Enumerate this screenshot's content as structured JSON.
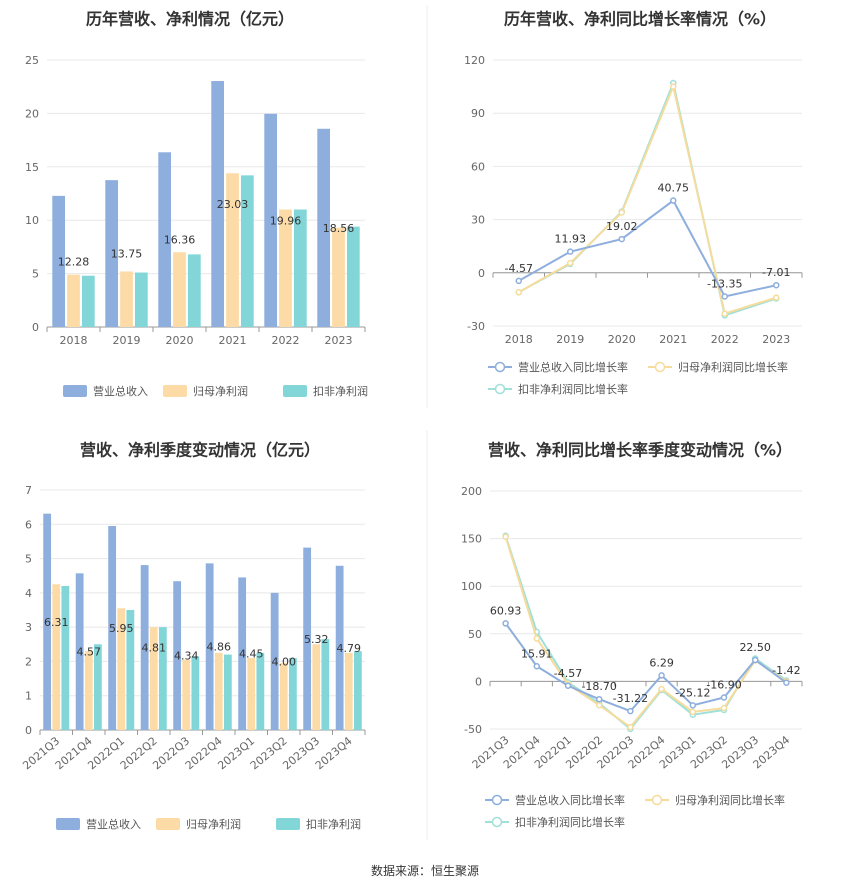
{
  "colors": {
    "revenue": "#8eaedd",
    "net_profit": "#fddba6",
    "deducted_profit": "#82d6d8",
    "grid": "#e8e8e8",
    "axis": "#999999",
    "revenue_line": "#8eaedd",
    "net_profit_line": "#f6dc9c",
    "deducted_line": "#9fe0d9"
  },
  "source": "数据来源：恒生聚源",
  "chart_data": [
    {
      "id": "annual-values",
      "type": "bar",
      "title": "历年营收、净利情况（亿元）",
      "categories": [
        "2018",
        "2019",
        "2020",
        "2021",
        "2022",
        "2023"
      ],
      "ylim": [
        0,
        25
      ],
      "yticks": [
        0,
        5,
        10,
        15,
        20,
        25
      ],
      "series": [
        {
          "name": "营业总收入",
          "values": [
            12.28,
            13.75,
            16.36,
            23.03,
            19.96,
            18.56
          ],
          "labels": [
            "12.28",
            "13.75",
            "16.36",
            "23.03",
            "19.96",
            "18.56"
          ]
        },
        {
          "name": "归母净利润",
          "values": [
            4.9,
            5.2,
            7.0,
            14.4,
            11.0,
            9.3
          ]
        },
        {
          "name": "扣非净利润",
          "values": [
            4.8,
            5.1,
            6.8,
            14.2,
            11.0,
            9.4
          ]
        }
      ],
      "grid": true,
      "legend": "bottom"
    },
    {
      "id": "annual-growth",
      "type": "line",
      "title": "历年营收、净利同比增长率情况（%）",
      "categories": [
        "2018",
        "2019",
        "2020",
        "2021",
        "2022",
        "2023"
      ],
      "ylim": [
        -30,
        120
      ],
      "yticks": [
        -30,
        0,
        30,
        60,
        90,
        120
      ],
      "series": [
        {
          "name": "营业总收入同比增长率",
          "values": [
            -4.57,
            11.93,
            19.02,
            40.75,
            -13.35,
            -7.01
          ],
          "labels": [
            "-4.57",
            "11.93",
            "19.02",
            "40.75",
            "-13.35",
            "-7.01"
          ]
        },
        {
          "name": "归母净利润同比增长率",
          "values": [
            -11,
            5.5,
            34,
            105,
            -23,
            -14
          ]
        },
        {
          "name": "扣非净利润同比增长率",
          "values": [
            -11,
            5,
            34.5,
            107,
            -24,
            -14.5
          ]
        }
      ],
      "grid": true,
      "legend": "bottom"
    },
    {
      "id": "quarterly-values",
      "type": "bar",
      "title": "营收、净利季度变动情况（亿元）",
      "categories": [
        "2021Q3",
        "2021Q4",
        "2022Q1",
        "2022Q2",
        "2022Q3",
        "2022Q4",
        "2023Q1",
        "2023Q2",
        "2023Q3",
        "2023Q4"
      ],
      "ylim": [
        0,
        7
      ],
      "yticks": [
        0,
        1,
        2,
        3,
        4,
        5,
        6,
        7
      ],
      "series": [
        {
          "name": "营业总收入",
          "values": [
            6.31,
            4.57,
            5.95,
            4.81,
            4.34,
            4.86,
            4.45,
            4.0,
            5.32,
            4.79
          ],
          "labels": [
            "6.31",
            "4.57",
            "5.95",
            "4.81",
            "4.34",
            "4.86",
            "4.45",
            "4.00",
            "5.32",
            "4.79"
          ]
        },
        {
          "name": "归母净利润",
          "values": [
            4.25,
            2.3,
            3.55,
            3.0,
            2.05,
            2.25,
            2.1,
            1.95,
            2.5,
            2.25
          ]
        },
        {
          "name": "扣非净利润",
          "values": [
            4.2,
            2.5,
            3.5,
            3.0,
            2.15,
            2.2,
            2.25,
            2.1,
            2.65,
            2.3
          ]
        }
      ],
      "grid": true,
      "legend": "bottom"
    },
    {
      "id": "quarterly-growth",
      "type": "line",
      "title": "营收、净利同比增长率季度变动情况（%）",
      "categories": [
        "2021Q3",
        "2021Q4",
        "2022Q1",
        "2022Q2",
        "2022Q3",
        "2022Q4",
        "2023Q1",
        "2023Q2",
        "2023Q3",
        "2023Q4"
      ],
      "ylim": [
        -50,
        200
      ],
      "yticks": [
        -50,
        0,
        50,
        100,
        150,
        200
      ],
      "series": [
        {
          "name": "营业总收入同比增长率",
          "values": [
            60.93,
            15.91,
            -4.57,
            -18.7,
            -31.22,
            6.29,
            -25.12,
            -16.9,
            22.5,
            -1.42
          ],
          "labels": [
            "60.93",
            "15.91",
            "-4.57",
            "-18.70",
            "-31.22",
            "6.29",
            "-25.12",
            "-16.90",
            "22.50",
            "-1.42"
          ]
        },
        {
          "name": "归母净利润同比增长率",
          "values": [
            152,
            45,
            -3,
            -25,
            -48,
            -8,
            -32,
            -28,
            22,
            0
          ]
        },
        {
          "name": "扣非净利润同比增长率",
          "values": [
            153,
            52,
            -1,
            -23,
            -50,
            -9,
            -35,
            -30,
            24,
            1
          ]
        }
      ],
      "grid": true,
      "legend": "bottom"
    }
  ]
}
